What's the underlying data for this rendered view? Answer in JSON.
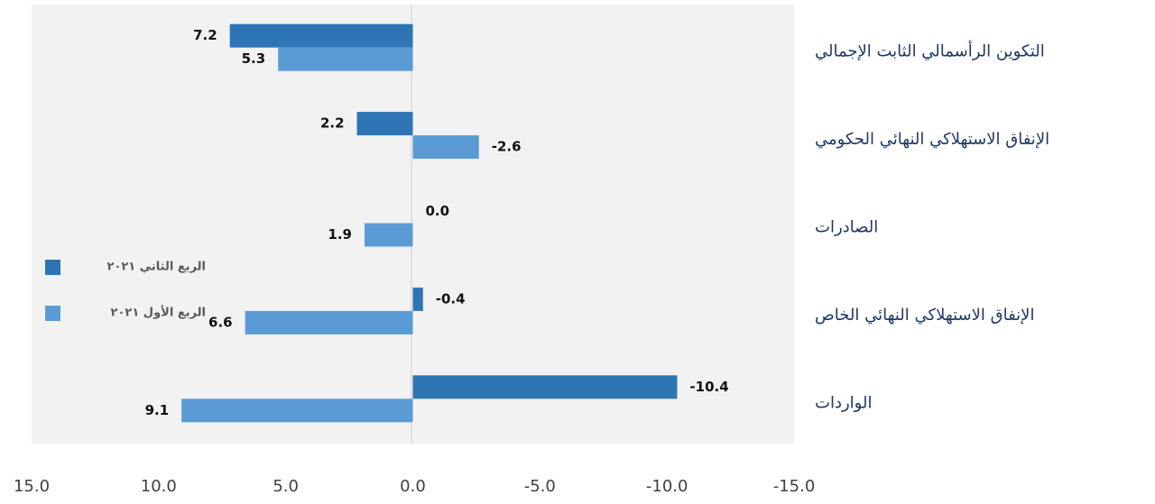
{
  "chart_data": {
    "type": "bar",
    "orientation": "horizontal",
    "categories": [
      "التكوين الرأسمالي الثابت الإجمالي",
      "الإنفاق  الاستهلاكي النهائي الحكومي",
      "الصادرات",
      "الإنفاق  الاستهلاكي النهائي الخاص",
      "الواردات"
    ],
    "series": [
      {
        "name": "الربع الثاني ٢٠٢١",
        "color": "#2e75b6",
        "values": [
          7.2,
          2.2,
          0.0,
          -0.4,
          -10.4
        ],
        "value_labels": [
          "7.2",
          "2.2",
          "0.0",
          "-0.4",
          "-10.4"
        ]
      },
      {
        "name": "الربع الأول ٢٠٢١",
        "color": "#5b9bd5",
        "values": [
          5.3,
          -2.6,
          1.9,
          6.6,
          9.1
        ],
        "value_labels": [
          "5.3",
          "-2.6",
          "1.9",
          "6.6",
          "9.1"
        ]
      }
    ],
    "xlim": [
      15,
      -15
    ],
    "xticks": [
      {
        "value": 15,
        "label": "15.0"
      },
      {
        "value": 10,
        "label": "10.0"
      },
      {
        "value": 5,
        "label": "5.0"
      },
      {
        "value": 0,
        "label": "0.0"
      },
      {
        "value": -5,
        "label": "-5.0"
      },
      {
        "value": -10,
        "label": "-10.0"
      },
      {
        "value": -15,
        "label": "-15.0"
      }
    ],
    "grid": false,
    "legend": "left"
  }
}
